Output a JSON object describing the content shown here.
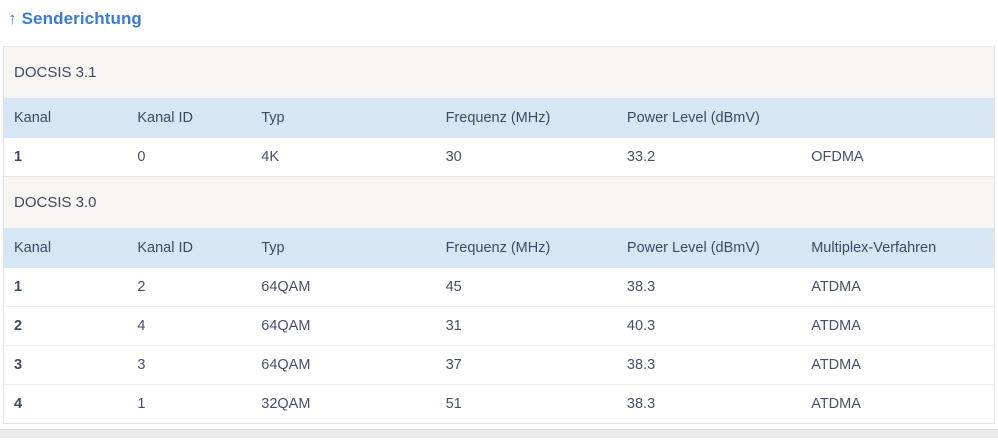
{
  "page": {
    "title": "Senderichtung",
    "title_arrow": "↑"
  },
  "table": {
    "sections": [
      {
        "name": "DOCSIS 3.1",
        "columns": [
          "Kanal",
          "Kanal ID",
          "Typ",
          "Frequenz (MHz)",
          "Power Level (dBmV)",
          ""
        ],
        "rows": [
          [
            "1",
            "0",
            "4K",
            "30",
            "33.2",
            "OFDMA"
          ]
        ]
      },
      {
        "name": "DOCSIS 3.0",
        "columns": [
          "Kanal",
          "Kanal ID",
          "Typ",
          "Frequenz (MHz)",
          "Power Level (dBmV)",
          "Multiplex-Verfahren"
        ],
        "rows": [
          [
            "1",
            "2",
            "64QAM",
            "45",
            "38.3",
            "ATDMA"
          ],
          [
            "2",
            "4",
            "64QAM",
            "31",
            "40.3",
            "ATDMA"
          ],
          [
            "3",
            "3",
            "64QAM",
            "37",
            "38.3",
            "ATDMA"
          ],
          [
            "4",
            "1",
            "32QAM",
            "51",
            "38.3",
            "ATDMA"
          ]
        ]
      }
    ],
    "column_widths_pct": [
      12.5,
      12.5,
      18.6,
      18.3,
      18.6,
      19.5
    ]
  },
  "colors": {
    "title_blue": "#3b7cd0",
    "header_row_bg": "#d7e6f5",
    "section_bg": "#f6f5f2",
    "text": "#44506b",
    "border": "#e4e4e2"
  }
}
